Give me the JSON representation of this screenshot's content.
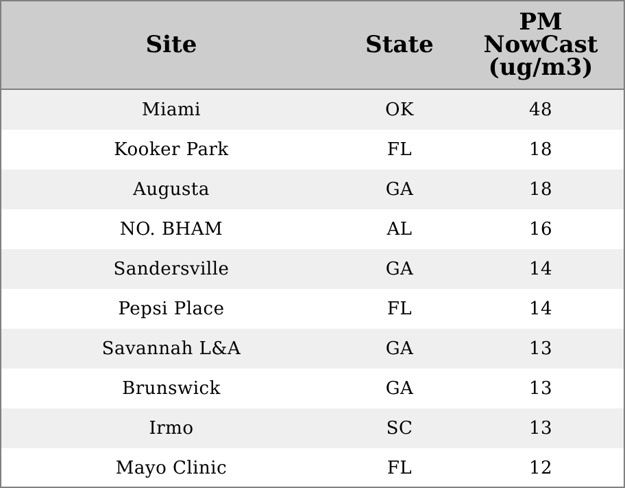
{
  "chart_data": {
    "type": "table",
    "columns": [
      "Site",
      "State",
      "PM\nNowCast\n(ug/m3)"
    ],
    "rows": [
      [
        "Miami",
        "OK",
        "48"
      ],
      [
        "Kooker Park",
        "FL",
        "18"
      ],
      [
        "Augusta",
        "GA",
        "18"
      ],
      [
        "NO. BHAM",
        "AL",
        "16"
      ],
      [
        "Sandersville",
        "GA",
        "14"
      ],
      [
        "Pepsi Place",
        "FL",
        "14"
      ],
      [
        "Savannah L&A",
        "GA",
        "13"
      ],
      [
        "Brunswick",
        "GA",
        "13"
      ],
      [
        "Irmo",
        "SC",
        "13"
      ],
      [
        "Mayo Clinic",
        "FL",
        "12"
      ]
    ],
    "colors": {
      "header_bg": "#cdcdcd",
      "row_odd_bg": "#efefef",
      "row_even_bg": "#ffffff",
      "border": "#808080"
    }
  }
}
